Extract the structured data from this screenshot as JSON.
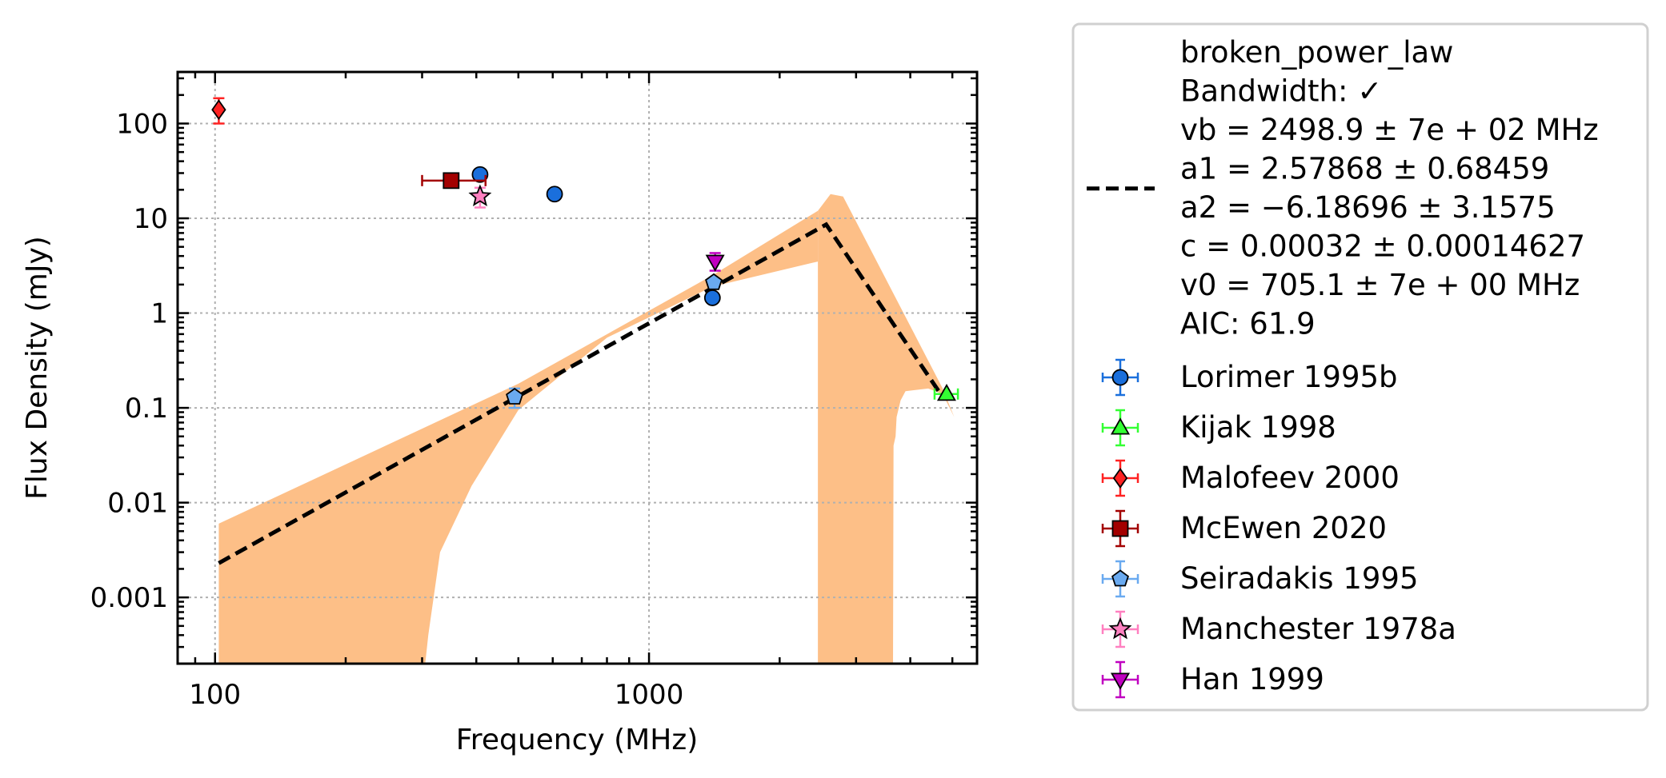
{
  "chart_data": {
    "type": "scatter",
    "xlabel": "Frequency (MHz)",
    "ylabel": "Flux Density (mJy)",
    "xscale": "log",
    "yscale": "log",
    "xlim": [
      82,
      5700
    ],
    "ylim": [
      0.0002,
      350
    ],
    "xticks": [
      {
        "value": 100,
        "label": "100"
      },
      {
        "value": 1000,
        "label": "1000"
      }
    ],
    "yticks": [
      {
        "value": 0.001,
        "label": "0.001"
      },
      {
        "value": 0.01,
        "label": "0.01"
      },
      {
        "value": 0.1,
        "label": "0.1"
      },
      {
        "value": 1,
        "label": "1"
      },
      {
        "value": 10,
        "label": "10"
      },
      {
        "value": 100,
        "label": "100"
      }
    ],
    "grid": true,
    "legend_position": "outside-right",
    "fit": {
      "name": "broken_power_law",
      "color": "#000000",
      "style": "dashed",
      "label_lines": [
        "broken_power_law",
        "Bandwidth: ✓",
        "vb = 2498.9 ± 7e + 02 MHz",
        "a1 = 2.57868 ± 0.68459",
        "a2 = −6.18696 ± 3.1575",
        "c = 0.00032 ± 0.00014627",
        "v0 = 705.1 ± 7e + 00 MHz",
        "AIC: 61.9"
      ],
      "line_points": [
        [
          102,
          0.0023
        ],
        [
          2560,
          8.6
        ],
        [
          4750,
          0.13
        ]
      ],
      "uncertainty_band": {
        "color": "#fdbf87",
        "upper": [
          [
            102,
            0.006
          ],
          [
            500,
            0.18
          ],
          [
            1400,
            2.5
          ],
          [
            2450,
            12
          ],
          [
            2620,
            18
          ],
          [
            2800,
            17
          ],
          [
            4750,
            0.16
          ],
          [
            5050,
            0.08
          ]
        ],
        "lower_segments": [
          [
            [
              102,
              0.0002
            ],
            [
              305,
              0.0002
            ],
            [
              310,
              0.0004
            ],
            [
              330,
              0.003
            ],
            [
              390,
              0.015
            ],
            [
              500,
              0.095
            ],
            [
              800,
              0.55
            ],
            [
              1400,
              1.9
            ],
            [
              2450,
              3.5
            ],
            [
              2450,
              0.0002
            ]
          ],
          [
            [
              3650,
              0.0002
            ],
            [
              3660,
              0.04
            ],
            [
              3700,
              0.05
            ],
            [
              3720,
              0.08
            ],
            [
              3800,
              0.12
            ],
            [
              3900,
              0.15
            ],
            [
              4400,
              0.16
            ],
            [
              4750,
              0.14
            ]
          ]
        ]
      }
    },
    "series": [
      {
        "name": "Lorimer 1995b",
        "marker": "circle",
        "color": "#1a6fdc",
        "errcolor": "#1a6fdc",
        "points": [
          {
            "x": 408,
            "y": 29
          },
          {
            "x": 606,
            "y": 18
          },
          {
            "x": 1400,
            "y": 1.45
          }
        ]
      },
      {
        "name": "Kijak 1998",
        "marker": "triangle-up",
        "color": "#33ff33",
        "errcolor": "#33ff33",
        "points": [
          {
            "x": 4850,
            "y": 0.14,
            "xerr": [
              4550,
              5150
            ]
          }
        ]
      },
      {
        "name": "Malofeev 2000",
        "marker": "diamond",
        "color": "#ff2222",
        "errcolor": "#ff2222",
        "points": [
          {
            "x": 102,
            "y": 140,
            "yerr": [
              100,
              185
            ]
          }
        ]
      },
      {
        "name": "McEwen 2020",
        "marker": "square",
        "color": "#a30000",
        "errcolor": "#a30000",
        "points": [
          {
            "x": 350,
            "y": 25,
            "xerr": [
              300,
              420
            ]
          }
        ]
      },
      {
        "name": "Seiradakis 1995",
        "marker": "pentagon",
        "color": "#6aaaf0",
        "errcolor": "#6aaaf0",
        "points": [
          {
            "x": 490,
            "y": 0.13,
            "yerr": [
              0.1,
              0.16
            ]
          },
          {
            "x": 1410,
            "y": 2.1
          }
        ]
      },
      {
        "name": "Manchester 1978a",
        "marker": "star",
        "color": "#ff80c0",
        "errcolor": "#ff80c0",
        "points": [
          {
            "x": 408,
            "y": 17,
            "yerr": [
              13,
              21
            ]
          }
        ]
      },
      {
        "name": "Han 1999",
        "marker": "triangle-down",
        "color": "#c000c0",
        "errcolor": "#c000c0",
        "points": [
          {
            "x": 1420,
            "y": 3.5,
            "yerr": [
              2.8,
              4.3
            ]
          }
        ]
      }
    ]
  }
}
